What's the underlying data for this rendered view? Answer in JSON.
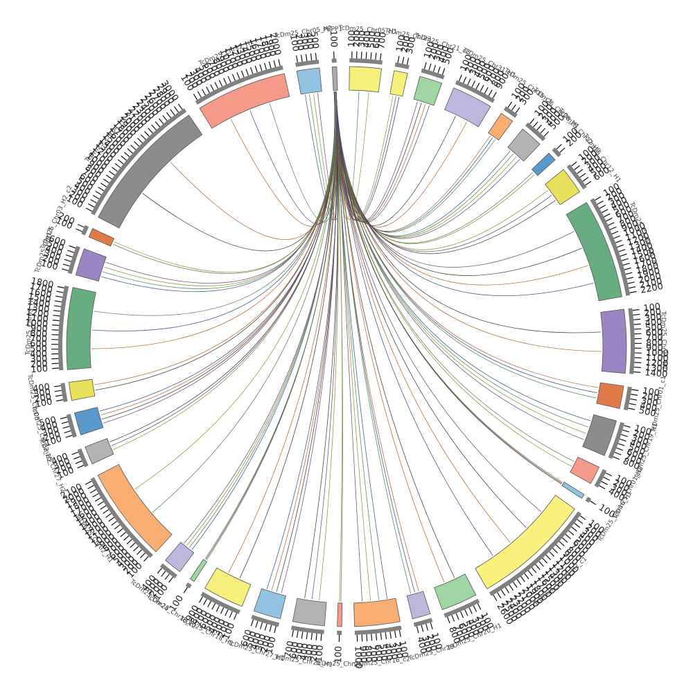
{
  "chart_data": {
    "type": "chord",
    "description_free": true,
    "segments": [
      {
        "name": "TcDm25_Chr05_H1",
        "color": "#f6ef7b",
        "ticks": [
          "100",
          "200",
          "300",
          "400",
          "500",
          "600",
          "700"
        ]
      },
      {
        "name": "TcDm25_Chr23",
        "color": "#f6ef7b",
        "ticks": [
          "100",
          "200",
          "300"
        ]
      },
      {
        "name": "TcDm25_Chr21_c2",
        "color": "#9fd6a4",
        "ticks": [
          "100",
          "200",
          "300",
          "400",
          "500"
        ]
      },
      {
        "name": "TcDm25_Chr31_H1",
        "color": "#bcb8dd",
        "ticks": [
          "100",
          "200",
          "300",
          "400",
          "500",
          "600",
          "700",
          "800",
          "900"
        ]
      },
      {
        "name": "TcDm25_Chr15_c1",
        "color": "#f8ad72",
        "ticks": [
          "100",
          "200",
          "300"
        ]
      },
      {
        "name": "TcDm25_Chr28_H1",
        "color": "#b3b3b3",
        "ticks": [
          "100",
          "200",
          "300",
          "400",
          "500"
        ]
      },
      {
        "name": "TcDm25_Chr12_H2",
        "color": "#5b98cc",
        "ticks": [
          "100",
          "200"
        ]
      },
      {
        "name": "TcDm25_Chr12_H1",
        "color": "#e8df5a",
        "ticks": [
          "100",
          "200",
          "300",
          "400",
          "500",
          "600"
        ]
      },
      {
        "name": "TcDm25_Chr08_H1_c1",
        "color": "#67ad7f",
        "ticks": [
          "100",
          "200",
          "300",
          "400",
          "500",
          "600",
          "700",
          "800",
          "900",
          "1000",
          "1100",
          "1200",
          "1300",
          "1400",
          "1500",
          "1600",
          "1700",
          "1800",
          "1900",
          "2000",
          "2100",
          "2200"
        ]
      },
      {
        "name": "TcDm25_Chr21_H1",
        "color": "#9b85c2",
        "ticks": [
          "100",
          "200",
          "300",
          "400",
          "500",
          "600",
          "700",
          "800",
          "900",
          "1000",
          "1100",
          "1200",
          "1300",
          "1400"
        ]
      },
      {
        "name": "TcDm25_Chr01_c1",
        "color": "#e07c4a",
        "ticks": [
          "100",
          "200",
          "300",
          "400",
          "500"
        ]
      },
      {
        "name": "TcDm25_Chr19_H1",
        "color": "#8c8c8c",
        "ticks": [
          "100",
          "200",
          "300",
          "400",
          "500",
          "600",
          "700",
          "800"
        ]
      },
      {
        "name": "TcDm25_Chr01_H2",
        "color": "#f59a88",
        "ticks": [
          "100",
          "200",
          "300",
          "400"
        ]
      },
      {
        "name": "TcDm25_Chr16_H1",
        "color": "#92c3e2",
        "ticks": [
          "100"
        ]
      },
      {
        "name": "TcDm25_Chr30_H2_c1",
        "color": "#fbf17f",
        "ticks": [
          "100",
          "200",
          "300",
          "400",
          "500",
          "600",
          "700",
          "800",
          "900",
          "1000",
          "1100",
          "1200",
          "1300",
          "1400",
          "1500",
          "1600",
          "1700",
          "1800",
          "1900",
          "2000",
          "2100",
          "2200",
          "2300",
          "2400",
          "2500",
          "2600"
        ]
      },
      {
        "name": "TcDm25_Chr20_H1",
        "color": "#9fd6a4",
        "ticks": [
          "100",
          "200",
          "300",
          "400",
          "500",
          "600",
          "700",
          "800"
        ]
      },
      {
        "name": "TcDm25_Chr29",
        "color": "#bcb8dd",
        "ticks": [
          "100",
          "200",
          "300",
          "400"
        ]
      },
      {
        "name": "TcDm25_Chr16_c2",
        "color": "#f8ad72",
        "ticks": [
          "100",
          "200",
          "300",
          "400",
          "500",
          "600",
          "700",
          "800",
          "900",
          "1000"
        ]
      },
      {
        "name": "TcDm25_Chr26",
        "color": "#f59a88",
        "ticks": [
          "100"
        ]
      },
      {
        "name": "TcDm25_Chr25_H1",
        "color": "#b3b3b3",
        "ticks": [
          "100",
          "200",
          "300",
          "400",
          "500",
          "600",
          "700"
        ]
      },
      {
        "name": "TcDm25_Chr27_H1",
        "color": "#92c3e2",
        "ticks": [
          "100",
          "200",
          "300",
          "400",
          "500",
          "600"
        ]
      },
      {
        "name": "TcDm25_Chr18_H1",
        "color": "#f6ef7b",
        "ticks": [
          "100",
          "200",
          "300",
          "400",
          "500",
          "600",
          "700",
          "800",
          "900"
        ]
      },
      {
        "name": "TcDm25_Chr18_c2",
        "color": "#9fd6a4",
        "ticks": [
          "100"
        ]
      },
      {
        "name": "TcDm25_Chr24",
        "color": "#bcb8dd",
        "ticks": [
          "100",
          "200",
          "300",
          "400"
        ]
      },
      {
        "name": "TcDm25_Chr02_H1",
        "color": "#f8ad72",
        "ticks": [
          "100",
          "200",
          "300",
          "400",
          "500",
          "600",
          "700",
          "800",
          "900",
          "1000",
          "1100",
          "1200",
          "1300",
          "1400",
          "1500",
          "1600",
          "1700",
          "1800",
          "1900",
          "2000",
          "2100"
        ]
      },
      {
        "name": "TcDm25_Chr27_H2_c1",
        "color": "#b3b3b3",
        "ticks": [
          "100",
          "200",
          "300",
          "400"
        ]
      },
      {
        "name": "TcDm25_Chr22_H2",
        "color": "#5b98cc",
        "ticks": [
          "100",
          "200",
          "300",
          "400",
          "500"
        ]
      },
      {
        "name": "TcDm25_Chr05",
        "color": "#e8df5a",
        "ticks": [
          "100",
          "200",
          "300",
          "400"
        ]
      },
      {
        "name": "TcDm25_Chr03_H1",
        "color": "#67ad7f",
        "ticks": [
          "100",
          "200",
          "300",
          "400",
          "500",
          "600",
          "700",
          "800",
          "900",
          "1000",
          "1100",
          "1200",
          "1300",
          "1400",
          "1500",
          "1600",
          "1700",
          "1800"
        ]
      },
      {
        "name": "TcDm25_Chr13",
        "color": "#9b85c2",
        "ticks": [
          "100",
          "200",
          "300",
          "400",
          "500",
          "600"
        ]
      },
      {
        "name": "TcDm25_Chr03_H2_c2",
        "color": "#e07c4a",
        "ticks": [
          "100",
          "200"
        ]
      },
      {
        "name": "TcDm25_Chr04_H1_c1",
        "color": "#8c8c8c",
        "ticks": [
          "100",
          "200",
          "300",
          "400",
          "500",
          "600",
          "700",
          "800",
          "900",
          "1000",
          "1100",
          "1200",
          "1300",
          "1400",
          "1500",
          "1600",
          "1700",
          "1800",
          "1900",
          "2000",
          "2100",
          "2200",
          "2300",
          "2400",
          "2500",
          "2600",
          "2700",
          "2800",
          "2900",
          "3000"
        ]
      },
      {
        "name": "TcDm25_Chr32_H1",
        "color": "#f59a88",
        "ticks": [
          "100",
          "200",
          "300",
          "400",
          "500",
          "600",
          "700",
          "800",
          "900",
          "1000",
          "1100",
          "1200",
          "1300",
          "1400",
          "1500",
          "1600",
          "1700",
          "1800",
          "1900",
          "2000"
        ]
      },
      {
        "name": "TcDm25_Chr05_H2",
        "color": "#92c3e2",
        "ticks": [
          "100",
          "200",
          "300",
          "400",
          "500"
        ]
      },
      {
        "name": "PEPP1",
        "color": "#aaaaaa",
        "ticks": [
          "100"
        ]
      }
    ],
    "link_colors": [
      "#333333",
      "#b5612b",
      "#2c4f7c",
      "#4f7f52",
      "#8a8f2a",
      "#6b3f7a"
    ],
    "hub_segment": "PEPP1",
    "link_targets": [
      "TcDm25_Chr04_H1_c1",
      "TcDm25_Chr32_H1",
      "TcDm25_Chr05_H2",
      "TcDm25_Chr05_H1",
      "TcDm25_Chr23",
      "TcDm25_Chr21_c2",
      "TcDm25_Chr31_H1",
      "TcDm25_Chr15_c1",
      "TcDm25_Chr28_H1",
      "TcDm25_Chr12_H2",
      "TcDm25_Chr12_H1",
      "TcDm25_Chr08_H1_c1",
      "TcDm25_Chr21_H1",
      "TcDm25_Chr01_c1",
      "TcDm25_Chr19_H1",
      "TcDm25_Chr01_H2",
      "TcDm25_Chr16_H1",
      "TcDm25_Chr30_H2_c1",
      "TcDm25_Chr20_H1",
      "TcDm25_Chr29",
      "TcDm25_Chr16_c2",
      "TcDm25_Chr26",
      "TcDm25_Chr25_H1",
      "TcDm25_Chr27_H1",
      "TcDm25_Chr18_H1",
      "TcDm25_Chr18_c2",
      "TcDm25_Chr24",
      "TcDm25_Chr02_H1",
      "TcDm25_Chr27_H2_c1",
      "TcDm25_Chr22_H2",
      "TcDm25_Chr05",
      "TcDm25_Chr03_H1",
      "TcDm25_Chr13",
      "TcDm25_Chr03_H2_c2"
    ]
  }
}
